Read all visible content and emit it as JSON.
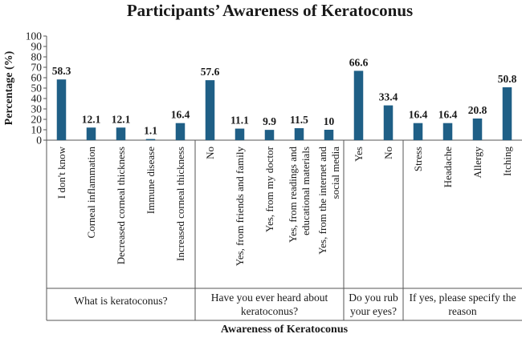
{
  "chart_data": {
    "type": "bar",
    "title": "Participants’ Awareness of Keratoconus",
    "xlabel": "Awareness of Keratoconus",
    "ylabel": "Percentage (%)",
    "ylim": [
      0,
      100
    ],
    "yticks": [
      0,
      10,
      20,
      30,
      40,
      50,
      60,
      70,
      80,
      90,
      100
    ],
    "grid": false,
    "bar_color": "#1f5f86",
    "categories": [
      [
        "I don't know"
      ],
      [
        "Corneal inflammation"
      ],
      [
        "Decreased corneal thickness"
      ],
      [
        "Immune disease"
      ],
      [
        "Increased corneal thickness"
      ],
      [
        "No"
      ],
      [
        "Yes, from friends and family"
      ],
      [
        "Yes, from my doctor"
      ],
      [
        "Yes, from readings and",
        "educational materials"
      ],
      [
        "Yes, from the internet and",
        "social media"
      ],
      [
        "Yes"
      ],
      [
        "No"
      ],
      [
        "Stress"
      ],
      [
        "Headache"
      ],
      [
        "Allergy"
      ],
      [
        "Itching"
      ]
    ],
    "values": [
      58.3,
      12.1,
      12.1,
      1.1,
      16.4,
      57.6,
      11.1,
      9.9,
      11.5,
      10,
      66.6,
      33.4,
      16.4,
      16.4,
      20.8,
      50.8
    ],
    "value_labels": [
      "58.3",
      "12.1",
      "12.1",
      "1.1",
      "16.4",
      "57.6",
      "11.1",
      "9.9",
      "11.5",
      "10",
      "66.6",
      "33.4",
      "16.4",
      "16.4",
      "20.8",
      "50.8"
    ],
    "groups": [
      {
        "label": [
          "What is keratoconus?"
        ],
        "count": 5
      },
      {
        "label": [
          "Have you ever heard about",
          "keratoconus?"
        ],
        "count": 5
      },
      {
        "label": [
          "Do you rub",
          "your eyes?"
        ],
        "count": 2
      },
      {
        "label": [
          "If yes, please specify the",
          "reason"
        ],
        "count": 4
      }
    ]
  }
}
